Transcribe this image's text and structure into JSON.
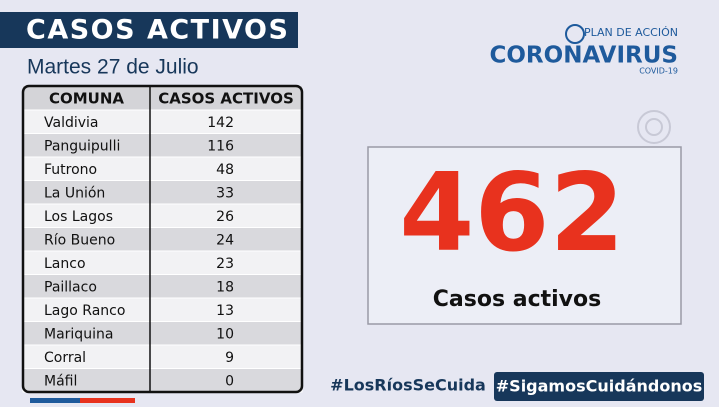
{
  "header": {
    "title": "CASOS ACTIVOS",
    "date": "Martes 27 de Julio"
  },
  "logo": {
    "top": "PLAN DE ACCIÓN",
    "main": "CORONAVIRUS",
    "sub": "COVID-19"
  },
  "table": {
    "columns": [
      "COMUNA",
      "CASOS ACTIVOS"
    ],
    "rows": [
      [
        "Valdivia",
        142
      ],
      [
        "Panguipulli",
        116
      ],
      [
        "Futrono",
        48
      ],
      [
        "La Unión",
        33
      ],
      [
        "Los Lagos",
        26
      ],
      [
        "Río Bueno",
        24
      ],
      [
        "Lanco",
        23
      ],
      [
        "Paillaco",
        18
      ],
      [
        "Lago Ranco",
        13
      ],
      [
        "Mariquina",
        10
      ],
      [
        "Corral",
        9
      ],
      [
        "Máfil",
        0
      ]
    ]
  },
  "total": {
    "value": 462,
    "label": "Casos activos"
  },
  "hashtags": [
    "#LosRíosSeCuida",
    "#SigamosCuidándonos"
  ]
}
